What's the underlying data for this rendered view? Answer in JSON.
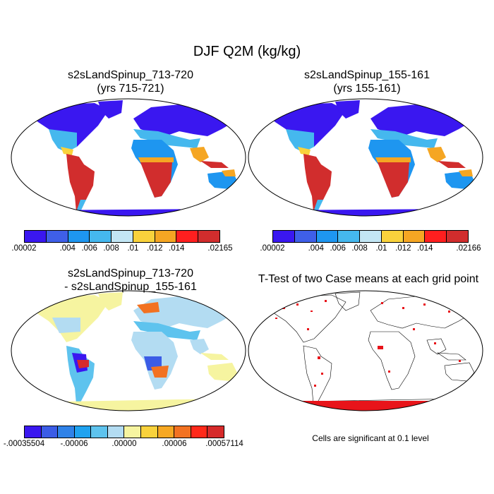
{
  "main_title": "DJF Q2M (kg/kg)",
  "panels": [
    {
      "title_line1": "s2sLandSpinup_713-720",
      "title_line2": "(yrs 715-721)",
      "colorbar": {
        "colors": [
          "#3a17f0",
          "#3f5fe8",
          "#1e96f0",
          "#45b8ee",
          "#c3e6f4",
          "#f9d23c",
          "#f5a623",
          "#ff1f1f",
          "#d12d2d"
        ],
        "labels": [
          ".00002",
          ".004",
          ".006",
          ".008",
          ".01",
          ".012",
          ".014",
          ".02165"
        ]
      },
      "map_icon": "world-map-icon"
    },
    {
      "title_line1": "s2sLandSpinup_155-161",
      "title_line2": "(yrs 155-161)",
      "colorbar": {
        "colors": [
          "#3a17f0",
          "#3f5fe8",
          "#1e96f0",
          "#45b8ee",
          "#c3e6f4",
          "#f9d23c",
          "#f5a623",
          "#ff1f1f",
          "#d12d2d"
        ],
        "labels": [
          ".00002",
          ".004",
          ".006",
          ".008",
          ".01",
          ".012",
          ".014",
          ".02166"
        ]
      },
      "map_icon": "world-map-icon"
    },
    {
      "title_line1": "s2sLandSpinup_713-720",
      "title_line2": "- s2sLandSpinup_155-161",
      "colorbar": {
        "colors": [
          "#3a17f0",
          "#3b5ce6",
          "#2f82e8",
          "#1fa2ef",
          "#5ec3ee",
          "#b3dcf2",
          "#f6f4a0",
          "#f9d23c",
          "#f7a823",
          "#f27222",
          "#ff2a1a",
          "#d62a2a"
        ],
        "labels": [
          "-.00035504",
          "-.00006",
          ".00000",
          ".00006",
          ".00057114"
        ]
      },
      "map_icon": "world-map-icon"
    },
    {
      "title_line1": "T-Test of two Case means at each grid point",
      "note": "Cells are significant at 0.1 level",
      "map_icon": "world-map-icon"
    }
  ]
}
